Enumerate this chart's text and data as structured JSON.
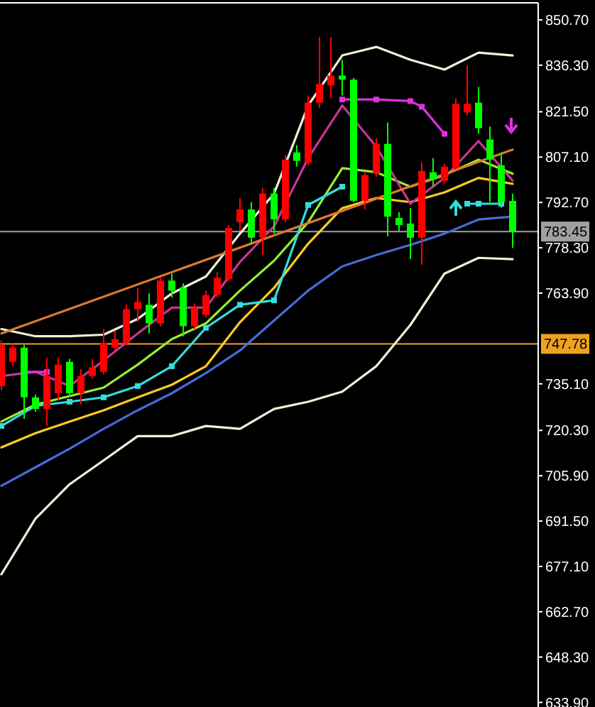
{
  "chart_data": {
    "type": "candlestick",
    "categories": [
      null,
      null,
      null,
      null,
      null,
      null,
      null,
      null,
      null,
      null,
      null,
      null,
      null,
      null,
      null,
      null,
      null,
      null,
      null,
      null,
      null,
      null,
      null,
      null,
      null,
      null,
      null,
      null,
      null,
      null,
      null,
      null,
      null,
      null,
      null,
      null,
      null,
      null,
      null,
      null,
      null,
      null,
      null,
      null,
      null,
      null
    ],
    "ohlc": [
      [
        734.4,
        748.9,
        733.0,
        747.5
      ],
      [
        742.1,
        748.0,
        740.7,
        746.6
      ],
      [
        746.6,
        747.5,
        724.0,
        730.8
      ],
      [
        730.8,
        731.7,
        726.2,
        727.1
      ],
      [
        727.1,
        743.4,
        721.7,
        737.6
      ],
      [
        732.1,
        743.4,
        729.9,
        741.2
      ],
      [
        742.1,
        743.0,
        730.8,
        732.1
      ],
      [
        732.1,
        739.8,
        728.5,
        737.6
      ],
      [
        737.6,
        743.0,
        736.7,
        740.3
      ],
      [
        738.9,
        752.5,
        738.0,
        748.0
      ],
      [
        746.6,
        752.0,
        745.7,
        749.3
      ],
      [
        748.0,
        760.2,
        747.5,
        758.8
      ],
      [
        758.8,
        765.6,
        754.7,
        761.1
      ],
      [
        760.2,
        763.8,
        751.1,
        754.3
      ],
      [
        754.3,
        768.8,
        753.4,
        767.9
      ],
      [
        767.9,
        770.1,
        762.4,
        764.7
      ],
      [
        765.6,
        767.0,
        750.2,
        753.4
      ],
      [
        753.4,
        760.6,
        752.5,
        759.3
      ],
      [
        757.0,
        764.7,
        756.1,
        763.3
      ],
      [
        763.3,
        770.6,
        762.4,
        768.8
      ],
      [
        768.3,
        785.5,
        767.9,
        784.6
      ],
      [
        786.4,
        794.1,
        783.7,
        790.5
      ],
      [
        790.5,
        792.8,
        779.2,
        781.5
      ],
      [
        781.5,
        797.3,
        776.0,
        795.5
      ],
      [
        795.5,
        797.3,
        782.8,
        787.3
      ],
      [
        787.3,
        807.7,
        786.4,
        806.3
      ],
      [
        808.6,
        810.9,
        804.1,
        805.9
      ],
      [
        805.4,
        826.7,
        804.5,
        824.4
      ],
      [
        824.4,
        845.3,
        822.6,
        830.3
      ],
      [
        829.9,
        845.3,
        825.8,
        833.0
      ],
      [
        833.0,
        838.0,
        826.7,
        831.7
      ],
      [
        831.7,
        832.2,
        792.8,
        793.2
      ],
      [
        793.2,
        802.3,
        790.5,
        801.4
      ],
      [
        801.8,
        813.1,
        800.9,
        811.3
      ],
      [
        811.3,
        818.1,
        781.9,
        788.2
      ],
      [
        787.8,
        789.6,
        783.7,
        785.5
      ],
      [
        786.0,
        791.0,
        774.7,
        781.5
      ],
      [
        781.5,
        805.4,
        772.9,
        802.7
      ],
      [
        802.3,
        806.8,
        797.7,
        800.0
      ],
      [
        799.6,
        805.0,
        798.7,
        804.1
      ],
      [
        803.6,
        825.8,
        803.2,
        824.0
      ],
      [
        821.3,
        836.2,
        820.4,
        824.0
      ],
      [
        824.4,
        829.4,
        814.5,
        816.3
      ],
      [
        812.7,
        816.8,
        792.8,
        806.3
      ],
      [
        804.5,
        808.6,
        791.0,
        792.8
      ],
      [
        793.2,
        795.5,
        778.3,
        783.45
      ]
    ],
    "colors": [
      "#ff0000",
      "#ff0000",
      "#00ff00",
      "#00ff00",
      "#ff0000",
      "#ff0000",
      "#00ff00",
      "#ff0000",
      "#ff0000",
      "#ff0000",
      "#ff0000",
      "#ff0000",
      "#ff0000",
      "#00ff00",
      "#ff0000",
      "#00ff00",
      "#00ff00",
      "#ff0000",
      "#ff0000",
      "#ff0000",
      "#ff0000",
      "#ff0000",
      "#00ff00",
      "#ff0000",
      "#00ff00",
      "#ff0000",
      "#00ff00",
      "#ff0000",
      "#ff0000",
      "#ff0000",
      "#00ff00",
      "#00ff00",
      "#ff0000",
      "#ff0000",
      "#00ff00",
      "#00ff00",
      "#00ff00",
      "#ff0000",
      "#00ff00",
      "#ff0000",
      "#ff0000",
      "#ff0000",
      "#00ff00",
      "#00ff00",
      "#00ff00",
      "#00ff00"
    ],
    "series": [
      {
        "type": "line",
        "color": "#f0f0d8",
        "values": [
          752.5,
          null,
          null,
          750.2,
          null,
          null,
          750.2,
          null,
          null,
          750.7,
          null,
          null,
          755.7,
          null,
          null,
          763.8,
          null,
          null,
          769.2,
          null,
          null,
          782.8,
          null,
          null,
          795.5,
          null,
          null,
          823.5,
          null,
          null,
          839.4,
          null,
          null,
          842.1,
          null,
          null,
          838.0,
          null,
          null,
          834.9,
          null,
          null,
          840.3,
          null,
          null,
          839.4
        ]
      },
      {
        "type": "line",
        "color": "#f0f0d8",
        "values": [
          674.6,
          null,
          null,
          692.3,
          null,
          null,
          703.2,
          null,
          null,
          710.8,
          null,
          null,
          718.5,
          null,
          null,
          718.5,
          null,
          null,
          721.7,
          null,
          null,
          720.8,
          null,
          null,
          727.1,
          null,
          null,
          729.4,
          null,
          null,
          732.6,
          null,
          null,
          740.7,
          null,
          null,
          753.8,
          null,
          null,
          770.1,
          null,
          null,
          775.1,
          null,
          null,
          774.7
        ]
      },
      {
        "type": "line",
        "color": "#4a6ad8",
        "values": [
          702.7,
          null,
          null,
          708.6,
          null,
          null,
          714.5,
          null,
          null,
          720.8,
          null,
          null,
          726.7,
          null,
          null,
          732.1,
          null,
          null,
          738.5,
          null,
          null,
          745.7,
          null,
          null,
          755.2,
          null,
          null,
          764.7,
          null,
          null,
          772.4,
          null,
          null,
          776.0,
          null,
          null,
          779.2,
          null,
          null,
          782.8,
          null,
          null,
          787.3,
          null,
          null,
          788.2
        ]
      },
      {
        "type": "line",
        "color": "#ffcc22",
        "values": [
          714.9,
          null,
          null,
          719.4,
          null,
          null,
          723.1,
          null,
          null,
          726.7,
          null,
          null,
          730.8,
          null,
          null,
          734.8,
          null,
          null,
          740.7,
          null,
          null,
          754.7,
          null,
          null,
          765.6,
          null,
          null,
          779.6,
          null,
          null,
          790.9,
          null,
          null,
          794.1,
          null,
          null,
          792.8,
          null,
          null,
          795.9,
          null,
          null,
          800.5,
          null,
          null,
          798.6
        ]
      },
      {
        "type": "line",
        "color": "#99ee33",
        "values": [
          723.1,
          null,
          null,
          728.5,
          null,
          null,
          731.2,
          null,
          null,
          733.9,
          null,
          null,
          741.2,
          null,
          null,
          749.3,
          null,
          null,
          754.3,
          null,
          null,
          764.7,
          null,
          null,
          774.2,
          null,
          null,
          786.4,
          null,
          null,
          803.6,
          null,
          null,
          802.3,
          null,
          null,
          797.7,
          null,
          null,
          801.4,
          null,
          null,
          806.3,
          null,
          null,
          801.8
        ]
      },
      {
        "type": "line",
        "color": "#cc3399",
        "values": [
          737.6,
          null,
          null,
          738.9,
          null,
          null,
          734.4,
          null,
          null,
          742.5,
          null,
          null,
          751.1,
          null,
          null,
          759.3,
          null,
          null,
          759.3,
          null,
          null,
          773.8,
          null,
          null,
          785.1,
          null,
          null,
          806.8,
          null,
          null,
          823.5,
          null,
          null,
          810.4,
          null,
          null,
          792.3,
          null,
          null,
          800.5,
          null,
          null,
          812.2,
          null,
          null,
          799.6
        ]
      },
      {
        "type": "line",
        "color": "#33dddd",
        "marker": "square",
        "values": [
          721.7,
          null,
          null,
          728.1,
          null,
          null,
          729.4,
          null,
          null,
          730.8,
          null,
          null,
          734.4,
          null,
          null,
          740.7,
          null,
          null,
          752.9,
          null,
          null,
          760.2,
          null,
          null,
          761.6,
          null,
          null,
          791.9,
          null,
          null,
          797.7,
          null,
          null,
          null,
          null,
          null,
          null,
          null,
          null,
          null,
          null,
          null,
          null,
          null,
          null,
          null
        ]
      },
      {
        "type": "line",
        "color": "#33dddd",
        "marker": "square",
        "values": [
          null,
          null,
          null,
          null,
          null,
          null,
          null,
          null,
          null,
          null,
          null,
          null,
          null,
          null,
          null,
          null,
          null,
          null,
          null,
          null,
          null,
          null,
          null,
          null,
          null,
          null,
          null,
          null,
          null,
          null,
          null,
          null,
          null,
          null,
          null,
          null,
          null,
          null,
          null,
          null,
          null,
          792.3,
          792.3,
          null,
          792.3,
          null
        ]
      },
      {
        "type": "line",
        "color": "#dd33dd",
        "marker": "square",
        "values": [
          null,
          null,
          738.9,
          null,
          738.9,
          null,
          null,
          null,
          null,
          null,
          null,
          null,
          null,
          null,
          null,
          null,
          null,
          null,
          null,
          null,
          null,
          null,
          null,
          null,
          null,
          null,
          null,
          null,
          null,
          null,
          null,
          null,
          null,
          null,
          null,
          null,
          null,
          null,
          null,
          null,
          null,
          null,
          null,
          null,
          null,
          null
        ]
      },
      {
        "type": "line",
        "color": "#dd33dd",
        "marker": "square",
        "values": [
          null,
          null,
          null,
          null,
          null,
          null,
          null,
          null,
          null,
          null,
          null,
          null,
          null,
          null,
          null,
          null,
          null,
          null,
          null,
          null,
          null,
          null,
          null,
          null,
          null,
          null,
          null,
          null,
          null,
          null,
          825.4,
          null,
          null,
          825.4,
          null,
          null,
          824.9,
          823.1,
          null,
          814.5,
          null,
          null,
          null,
          null,
          null,
          null
        ]
      },
      {
        "type": "line",
        "color": "#e07830",
        "values": [
          751.1,
          null,
          null,
          null,
          null,
          null,
          null,
          null,
          null,
          null,
          null,
          null,
          null,
          null,
          null,
          null,
          null,
          null,
          null,
          null,
          null,
          null,
          null,
          null,
          null,
          null,
          null,
          null,
          null,
          null,
          null,
          null,
          null,
          null,
          null,
          null,
          null,
          null,
          null,
          null,
          null,
          null,
          null,
          null,
          null,
          809.5
        ]
      }
    ],
    "ylim": [
      632.9,
      856.1
    ],
    "yticks": [
      {
        "value": 850.7,
        "label": "850.70"
      },
      {
        "value": 836.3,
        "label": "836.30"
      },
      {
        "value": 821.5,
        "label": "821.50"
      },
      {
        "value": 807.1,
        "label": "807.10"
      },
      {
        "value": 792.7,
        "label": "792.70"
      },
      {
        "value": 778.3,
        "label": "778.30"
      },
      {
        "value": 763.9,
        "label": "763.90"
      },
      {
        "value": 735.1,
        "label": "735.10"
      },
      {
        "value": 720.3,
        "label": "720.30"
      },
      {
        "value": 705.9,
        "label": "705.90"
      },
      {
        "value": 691.5,
        "label": "691.50"
      },
      {
        "value": 677.1,
        "label": "677.10"
      },
      {
        "value": 662.7,
        "label": "662.70"
      },
      {
        "value": 648.3,
        "label": "648.30"
      },
      {
        "value": 633.9,
        "label": "633.90"
      }
    ],
    "ref_lines": [
      {
        "axis": "y",
        "value": 783.45,
        "label": "783.45",
        "color": "#a0a0a0"
      },
      {
        "axis": "y",
        "value": 747.78,
        "label": "747.78",
        "color": "#f0a020"
      }
    ]
  }
}
